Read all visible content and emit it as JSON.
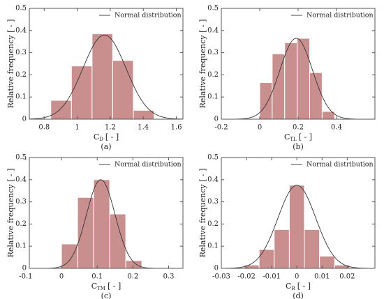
{
  "chart_data": [
    {
      "type": "histogram",
      "panel": "(a)",
      "y_label": "Relative frequency [ - ]",
      "x_label": {
        "symbol": "C",
        "subscript": "D",
        "unit": "[ - ]"
      },
      "bins": [
        0.84,
        0.965,
        1.09,
        1.215,
        1.34,
        1.465
      ],
      "counts": [
        0.085,
        0.24,
        0.385,
        0.265,
        0.04
      ],
      "color": "#c98f8f",
      "xlim": [
        0.71,
        1.64
      ],
      "xticks": [
        0.8,
        1,
        1.2,
        1.4,
        1.6
      ],
      "ylim": [
        0,
        0.5
      ],
      "yticks": [
        0,
        0.1,
        0.2,
        0.3,
        0.4,
        0.5
      ],
      "curve": {
        "name": "Normal distribution",
        "color": "#333333",
        "mean": 1.165,
        "sd": 0.13,
        "peak": 0.38
      },
      "legend": "upper right"
    },
    {
      "type": "histogram",
      "panel": "(b)",
      "y_label": "Relative frequency [ - ]",
      "x_label": {
        "symbol": "C",
        "subscript": "TL",
        "unit": "[ - ]"
      },
      "bins": [
        0,
        0.065,
        0.13,
        0.195,
        0.26,
        0.325,
        0.39
      ],
      "counts": [
        0.165,
        0.295,
        0.345,
        0.365,
        0.21,
        0.035
      ],
      "color": "#c98f8f",
      "xlim": [
        -0.2,
        0.6
      ],
      "xticks": [
        -0.2,
        0,
        0.2,
        0.4
      ],
      "ylim": [
        0,
        0.5
      ],
      "yticks": [
        0,
        0.1,
        0.2,
        0.3,
        0.4,
        0.5
      ],
      "curve": {
        "name": "Normal distribution",
        "color": "#333333",
        "mean": 0.19,
        "sd": 0.085,
        "peak": 0.365
      },
      "legend": "upper right"
    },
    {
      "type": "histogram",
      "panel": "(c)",
      "y_label": "Relative frequency [ - ]",
      "x_label": {
        "symbol": "C",
        "subscript": "TM",
        "unit": "[ - ]"
      },
      "bins": [
        0,
        0.045,
        0.09,
        0.135,
        0.18,
        0.225
      ],
      "counts": [
        0.11,
        0.32,
        0.4,
        0.245,
        0.035
      ],
      "color": "#c98f8f",
      "xlim": [
        -0.09,
        0.34
      ],
      "xticks": [
        -0.1,
        0,
        0.1,
        0.2,
        0.3
      ],
      "ylim": [
        0,
        0.5
      ],
      "yticks": [
        0,
        0.1,
        0.2,
        0.3,
        0.4,
        0.5
      ],
      "curve": {
        "name": "Normal distribution",
        "color": "#333333",
        "mean": 0.11,
        "sd": 0.04,
        "peak": 0.4
      },
      "legend": "upper right"
    },
    {
      "type": "histogram",
      "panel": "(d)",
      "y_label": "Relative frequency [ - ]",
      "x_label": {
        "symbol": "C",
        "subscript": "R",
        "unit": "[ - ]"
      },
      "bins": [
        -0.021,
        -0.015,
        -0.009,
        -0.003,
        0.003,
        0.009,
        0.015,
        0.021
      ],
      "counts": [
        0.015,
        0.085,
        0.175,
        0.375,
        0.175,
        0.055,
        0.015
      ],
      "color": "#c98f8f",
      "xlim": [
        -0.03,
        0.031
      ],
      "xticks": [
        -0.03,
        -0.02,
        -0.01,
        0,
        0.01,
        0.02
      ],
      "ylim": [
        0,
        0.5
      ],
      "yticks": [
        0,
        0.1,
        0.2,
        0.3,
        0.4,
        0.5
      ],
      "curve": {
        "name": "Normal distribution",
        "color": "#333333",
        "mean": 0,
        "sd": 0.0075,
        "peak": 0.375
      },
      "legend": "upper right"
    }
  ]
}
